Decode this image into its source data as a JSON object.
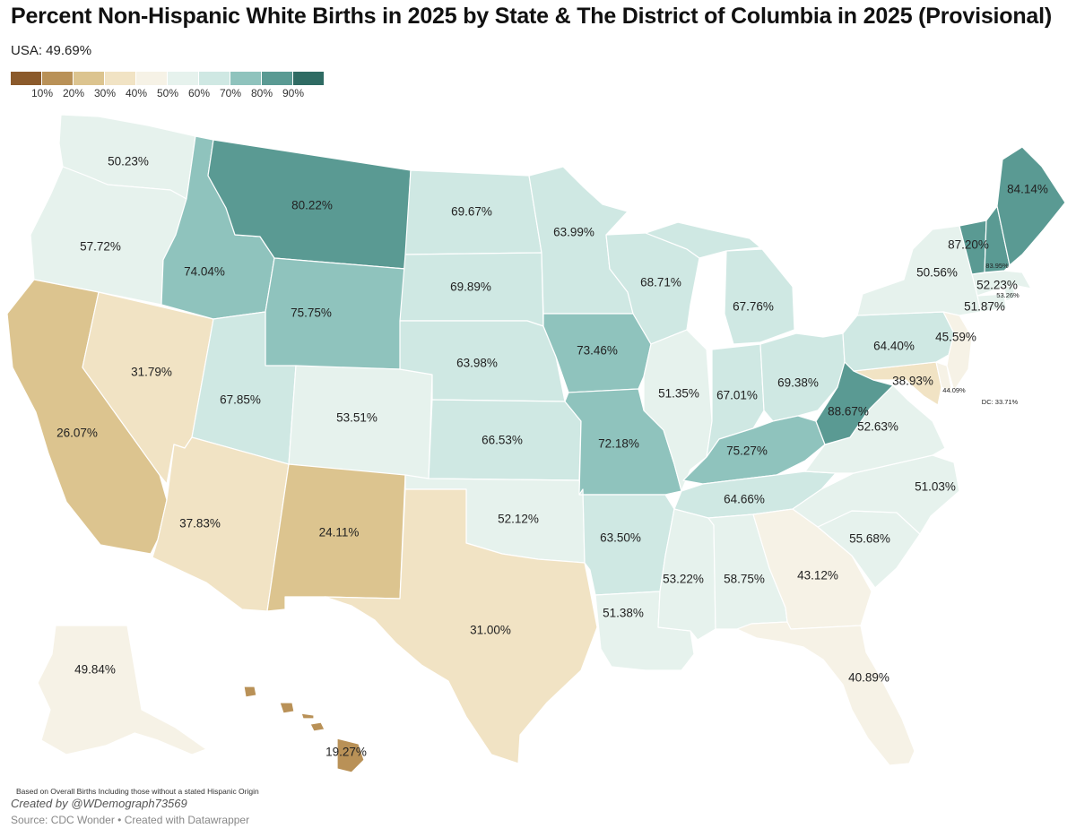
{
  "title": "Percent Non-Hispanic White Births in 2025 by State & The District of Columbia in 2025 (Provisional)",
  "subtitle": "USA: 49.69%",
  "legend": {
    "colors": [
      "#8b5a2b",
      "#b99157",
      "#dcc48f",
      "#f1e3c4",
      "#f6f2e6",
      "#e6f2ed",
      "#cfe8e3",
      "#8fc3bd",
      "#5a9a93",
      "#2f6b63"
    ],
    "ticks": [
      "10%",
      "20%",
      "30%",
      "40%",
      "50%",
      "60%",
      "70%",
      "80%",
      "90%"
    ]
  },
  "states": [
    {
      "name": "Washington",
      "label": "50.23%",
      "value": 50.23
    },
    {
      "name": "Oregon",
      "label": "57.72%",
      "value": 57.72
    },
    {
      "name": "California",
      "label": "26.07%",
      "value": 26.07
    },
    {
      "name": "Nevada",
      "label": "31.79%",
      "value": 31.79
    },
    {
      "name": "Idaho",
      "label": "74.04%",
      "value": 74.04
    },
    {
      "name": "Montana",
      "label": "80.22%",
      "value": 80.22
    },
    {
      "name": "Wyoming",
      "label": "75.75%",
      "value": 75.75
    },
    {
      "name": "Utah",
      "label": "67.85%",
      "value": 67.85
    },
    {
      "name": "Arizona",
      "label": "37.83%",
      "value": 37.83
    },
    {
      "name": "Colorado",
      "label": "53.51%",
      "value": 53.51
    },
    {
      "name": "New Mexico",
      "label": "24.11%",
      "value": 24.11
    },
    {
      "name": "North Dakota",
      "label": "69.67%",
      "value": 69.67
    },
    {
      "name": "South Dakota",
      "label": "69.89%",
      "value": 69.89
    },
    {
      "name": "Nebraska",
      "label": "63.98%",
      "value": 63.98
    },
    {
      "name": "Kansas",
      "label": "66.53%",
      "value": 66.53
    },
    {
      "name": "Oklahoma",
      "label": "52.12%",
      "value": 52.12
    },
    {
      "name": "Texas",
      "label": "31.00%",
      "value": 31.0
    },
    {
      "name": "Minnesota",
      "label": "63.99%",
      "value": 63.99
    },
    {
      "name": "Iowa",
      "label": "73.46%",
      "value": 73.46
    },
    {
      "name": "Missouri",
      "label": "72.18%",
      "value": 72.18
    },
    {
      "name": "Arkansas",
      "label": "63.50%",
      "value": 63.5
    },
    {
      "name": "Louisiana",
      "label": "51.38%",
      "value": 51.38
    },
    {
      "name": "Wisconsin",
      "label": "68.71%",
      "value": 68.71
    },
    {
      "name": "Illinois",
      "label": "51.35%",
      "value": 51.35
    },
    {
      "name": "Michigan",
      "label": "67.76%",
      "value": 67.76
    },
    {
      "name": "Indiana",
      "label": "67.01%",
      "value": 67.01
    },
    {
      "name": "Ohio",
      "label": "69.38%",
      "value": 69.38
    },
    {
      "name": "Kentucky",
      "label": "75.27%",
      "value": 75.27
    },
    {
      "name": "Tennessee",
      "label": "64.66%",
      "value": 64.66
    },
    {
      "name": "Mississippi",
      "label": "53.22%",
      "value": 53.22
    },
    {
      "name": "Alabama",
      "label": "58.75%",
      "value": 58.75
    },
    {
      "name": "Georgia",
      "label": "43.12%",
      "value": 43.12
    },
    {
      "name": "Florida",
      "label": "40.89%",
      "value": 40.89
    },
    {
      "name": "South Carolina",
      "label": "55.68%",
      "value": 55.68
    },
    {
      "name": "North Carolina",
      "label": "51.03%",
      "value": 51.03
    },
    {
      "name": "Virginia",
      "label": "52.63%",
      "value": 52.63
    },
    {
      "name": "West Virginia",
      "label": "88.67%",
      "value": 88.67
    },
    {
      "name": "Maryland",
      "label": "38.93%",
      "value": 38.93
    },
    {
      "name": "Delaware",
      "label": "44.09%",
      "value": 44.09
    },
    {
      "name": "Pennsylvania",
      "label": "64.40%",
      "value": 64.4
    },
    {
      "name": "New Jersey",
      "label": "45.59%",
      "value": 45.59
    },
    {
      "name": "New York",
      "label": "50.56%",
      "value": 50.56
    },
    {
      "name": "Connecticut",
      "label": "51.87%",
      "value": 51.87
    },
    {
      "name": "Rhode Island",
      "label": "53.26%",
      "value": 53.26
    },
    {
      "name": "Massachusetts",
      "label": "52.23%",
      "value": 52.23
    },
    {
      "name": "Vermont",
      "label": "87.20%",
      "value": 87.2
    },
    {
      "name": "New Hampshire",
      "label": "83.95%",
      "value": 83.95
    },
    {
      "name": "Maine",
      "label": "84.14%",
      "value": 84.14
    },
    {
      "name": "Alaska",
      "label": "49.84%",
      "value": 49.84
    },
    {
      "name": "Hawaii",
      "label": "19.27%",
      "value": 19.27
    },
    {
      "name": "District of Columbia",
      "label": "DC: 33.71%",
      "value": 33.71
    }
  ],
  "footnote": "Based on Overall Births Including those without a stated Hispanic Origin",
  "credit": "Created by @WDemograph73569",
  "source": "Source: CDC Wonder • Created with Datawrapper"
}
